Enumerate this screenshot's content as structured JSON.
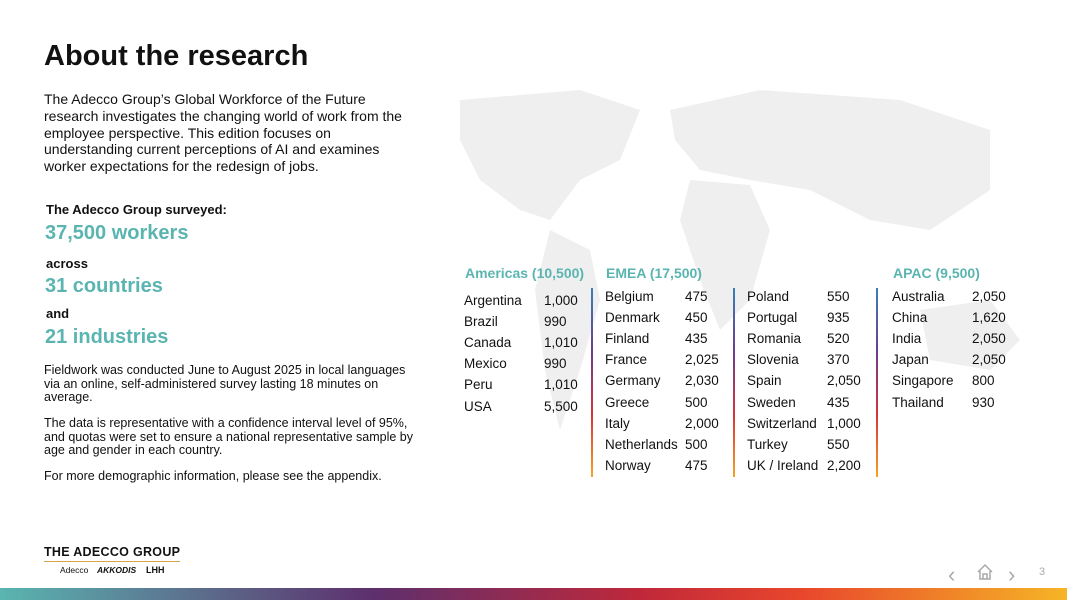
{
  "header": {
    "title": "About the research"
  },
  "intro": "The Adecco Group’s Global Workforce of the Future research investigates the changing world of work from the employee perspective. This edition focuses on understanding current perceptions of AI and examines worker expectations for the redesign of jobs.",
  "surveyed": {
    "label": "The Adecco Group surveyed:",
    "workers": "37,500 workers",
    "across": "across",
    "countries": "31 countries",
    "and": "and",
    "industries": "21 industries"
  },
  "notes": [
    "Fieldwork was conducted June to August 2025 in local languages via an online, self-administered survey lasting 18 minutes on average.",
    "The data is representative with a confidence interval level of 95%, and quotas were set to ensure a national representative sample by age and gender in each country.",
    "For more demographic information, please see the appendix."
  ],
  "regions": [
    {
      "title": "Americas (10,500)",
      "columns": [
        [
          [
            "Argentina",
            "1,000"
          ],
          [
            "Brazil",
            "990"
          ],
          [
            "Canada",
            "1,010"
          ],
          [
            "Mexico",
            "990"
          ],
          [
            "Peru",
            "1,010"
          ],
          [
            "USA",
            "5,500"
          ]
        ]
      ]
    },
    {
      "title": "EMEA (17,500)",
      "columns": [
        [
          [
            "Belgium",
            "475"
          ],
          [
            "Denmark",
            "450"
          ],
          [
            "Finland",
            "435"
          ],
          [
            "France",
            "2,025"
          ],
          [
            "Germany",
            "2,030"
          ],
          [
            "Greece",
            "500"
          ],
          [
            "Italy",
            "2,000"
          ],
          [
            "Netherlands",
            "500"
          ],
          [
            "Norway",
            "475"
          ]
        ],
        [
          [
            "Poland",
            "550"
          ],
          [
            "Portugal",
            "935"
          ],
          [
            "Romania",
            "520"
          ],
          [
            "Slovenia",
            "370"
          ],
          [
            "Spain",
            "2,050"
          ],
          [
            "Sweden",
            "435"
          ],
          [
            "Switzerland",
            "1,000"
          ],
          [
            "Turkey",
            "550"
          ],
          [
            "UK / Ireland",
            "2,200"
          ]
        ]
      ]
    },
    {
      "title": "APAC (9,500)",
      "columns": [
        [
          [
            "Australia",
            "2,050"
          ],
          [
            "China",
            "1,620"
          ],
          [
            "India",
            "2,050"
          ],
          [
            "Japan",
            "2,050"
          ],
          [
            "Singapore",
            "800"
          ],
          [
            "Thailand",
            "930"
          ]
        ]
      ]
    }
  ],
  "footer": {
    "logo": "THE ADECCO GROUP",
    "brands": [
      "Adecco",
      "AKKODIS",
      "LHH"
    ],
    "page": "3"
  }
}
